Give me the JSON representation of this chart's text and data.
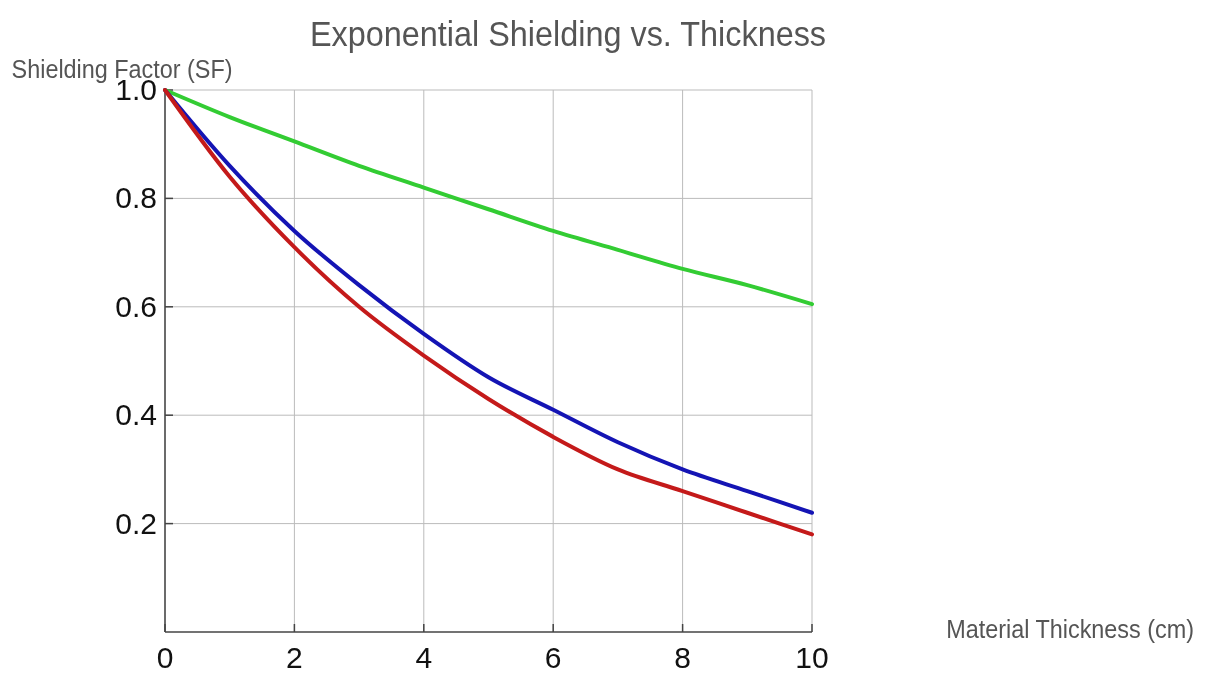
{
  "chart_data": {
    "type": "line",
    "title": "Exponential Shielding vs. Thickness",
    "xlabel": "Material Thickness (cm)",
    "ylabel": "Shielding Factor (SF)",
    "x": [
      0,
      1,
      2,
      3,
      4,
      5,
      6,
      7,
      8,
      9,
      10
    ],
    "series": [
      {
        "color": "#33cc33",
        "values": [
          1,
          0.95,
          0.905,
          0.86,
          0.82,
          0.78,
          0.74,
          0.705,
          0.67,
          0.64,
          0.605
        ]
      },
      {
        "color": "#1414b4",
        "values": [
          1,
          0.86,
          0.74,
          0.64,
          0.55,
          0.47,
          0.41,
          0.35,
          0.3,
          0.26,
          0.22
        ]
      },
      {
        "color": "#c41a1a",
        "values": [
          1,
          0.84,
          0.71,
          0.6,
          0.51,
          0.43,
          0.36,
          0.3,
          0.26,
          0.22,
          0.18
        ]
      }
    ],
    "xlim": [
      0,
      10
    ],
    "xticks": [
      0,
      2,
      4,
      6,
      8,
      10
    ],
    "ylim": [
      0,
      1
    ],
    "yticks": [
      0.2,
      0.4,
      0.6,
      0.8,
      {
        "value": 1,
        "label": "1.0"
      }
    ],
    "grid": true
  }
}
